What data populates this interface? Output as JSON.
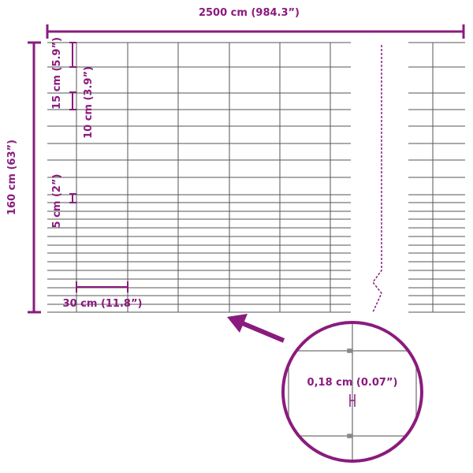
{
  "dimensions": {
    "total_length": "2500 cm (984.3”)",
    "total_height": "160 cm (63”)",
    "top_mesh_spacing": "15 cm (5.9”)",
    "middle_mesh_spacing": "10 cm (3.9”)",
    "bottom_mesh_spacing": "5 cm (2”)",
    "vertical_wire_spacing": "30 cm (11.8”)",
    "wire_thickness": "0,18 cm (0.07”)"
  },
  "colors": {
    "accent": "#8a1b7e",
    "wire": "#555555"
  }
}
